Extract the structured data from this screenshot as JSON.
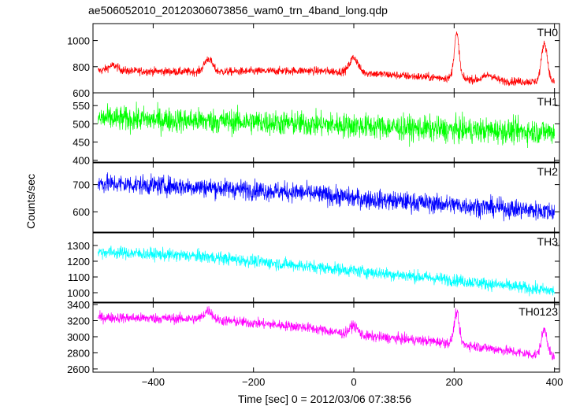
{
  "title": "ae506052010_20120306073856_wam0_trn_4band_long.qdp",
  "chart_data": {
    "type": "line",
    "title": "ae506052010_20120306073856_wam0_trn_4band_long.qdp",
    "xlabel": "Time [sec] 0 = 2012/03/06 07:38:56",
    "ylabel": "Counts/sec",
    "xlim": [
      -520,
      410
    ],
    "x_ticks": [
      -400,
      -200,
      0,
      200,
      400
    ],
    "grid": false,
    "panels": [
      {
        "name": "TH0",
        "color": "#ff0000",
        "ylim": [
          600,
          1130
        ],
        "y_ticks": [
          600,
          800,
          1000
        ],
        "series": {
          "x_range": [
            -510,
            400
          ],
          "noise": 22,
          "trend": [
            [
              -510,
              770
            ],
            [
              -300,
              760
            ],
            [
              -100,
              770
            ],
            [
              0,
              760
            ],
            [
              100,
              730
            ],
            [
              300,
              690
            ],
            [
              400,
              680
            ]
          ],
          "peaks": [
            [
              -290,
              100,
              8
            ],
            [
              0,
              110,
              8
            ],
            [
              205,
              340,
              5
            ],
            [
              380,
              300,
              6
            ],
            [
              -480,
              40,
              10
            ],
            [
              270,
              40,
              10
            ]
          ]
        }
      },
      {
        "name": "TH1",
        "color": "#00ff00",
        "ylim": [
          395,
          585
        ],
        "y_ticks": [
          400,
          450,
          500,
          550
        ],
        "series": {
          "x_range": [
            -510,
            400
          ],
          "noise": 24,
          "trend": [
            [
              -510,
              515
            ],
            [
              -200,
              505
            ],
            [
              0,
              495
            ],
            [
              200,
              483
            ],
            [
              400,
              478
            ]
          ],
          "peaks": []
        }
      },
      {
        "name": "TH2",
        "color": "#0000ff",
        "ylim": [
          525,
          780
        ],
        "y_ticks": [
          600,
          700
        ],
        "series": {
          "x_range": [
            -510,
            400
          ],
          "noise": 25,
          "trend": [
            [
              -510,
              705
            ],
            [
              -300,
              690
            ],
            [
              -100,
              670
            ],
            [
              0,
              650
            ],
            [
              200,
              625
            ],
            [
              400,
              600
            ]
          ],
          "peaks": []
        }
      },
      {
        "name": "TH3",
        "color": "#00ffff",
        "ylim": [
          940,
          1380
        ],
        "y_ticks": [
          1000,
          1100,
          1200,
          1300
        ],
        "series": {
          "x_range": [
            -510,
            400
          ],
          "noise": 28,
          "trend": [
            [
              -510,
              1260
            ],
            [
              -300,
              1230
            ],
            [
              -100,
              1170
            ],
            [
              0,
              1140
            ],
            [
              200,
              1080
            ],
            [
              400,
              1010
            ]
          ],
          "peaks": []
        }
      },
      {
        "name": "TH0123",
        "color": "#ff00ff",
        "ylim": [
          2560,
          3420
        ],
        "y_ticks": [
          2600,
          2800,
          3000,
          3200,
          3400
        ],
        "series": {
          "x_range": [
            -510,
            400
          ],
          "noise": 45,
          "trend": [
            [
              -510,
              3240
            ],
            [
              -300,
              3220
            ],
            [
              -100,
              3120
            ],
            [
              0,
              3020
            ],
            [
              200,
              2920
            ],
            [
              400,
              2740
            ]
          ],
          "peaks": [
            [
              -290,
              110,
              8
            ],
            [
              0,
              120,
              8
            ],
            [
              205,
              380,
              5
            ],
            [
              380,
              330,
              6
            ]
          ]
        }
      }
    ]
  }
}
